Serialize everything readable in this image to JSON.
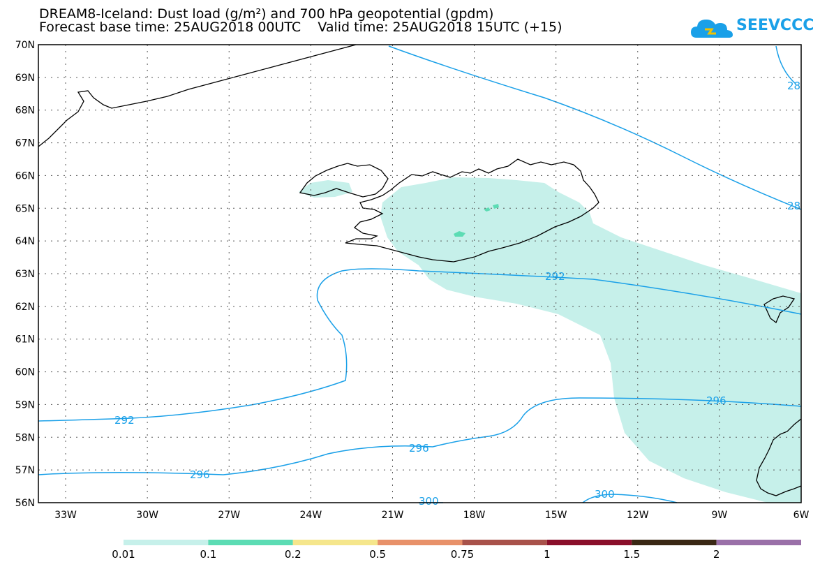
{
  "title": {
    "line1": "DREAM8-Iceland: Dust load (g/m²) and 700 hPa geopotential (gpdm)",
    "line2": "Forecast base time: 25AUG2018 00UTC    Valid time: 25AUG2018 15UTC (+15)"
  },
  "logo": {
    "text": "SEEVCCC"
  },
  "axes": {
    "lat_labels": [
      "70N",
      "69N",
      "68N",
      "67N",
      "66N",
      "65N",
      "64N",
      "63N",
      "62N",
      "61N",
      "60N",
      "59N",
      "58N",
      "57N",
      "56N"
    ],
    "lon_labels": [
      "33W",
      "30W",
      "27W",
      "24W",
      "21W",
      "18W",
      "15W",
      "12W",
      "9W",
      "6W"
    ]
  },
  "contours": {
    "color": "#1aa0e8",
    "labels": [
      "292",
      "292",
      "296",
      "296",
      "296",
      "300",
      "300",
      "28",
      "28"
    ]
  },
  "dust_fill_color": "#c6f0ea",
  "colorbar": {
    "colors": [
      "#c6f0ea",
      "#5cdcb4",
      "#f5e68c",
      "#e8916a",
      "#a8524a",
      "#8a0f2a",
      "#3a2814",
      "#9a70a8"
    ],
    "labels": [
      "0.01",
      "0.1",
      "0.2",
      "0.5",
      "0.75",
      "1",
      "1.5",
      "2"
    ]
  }
}
